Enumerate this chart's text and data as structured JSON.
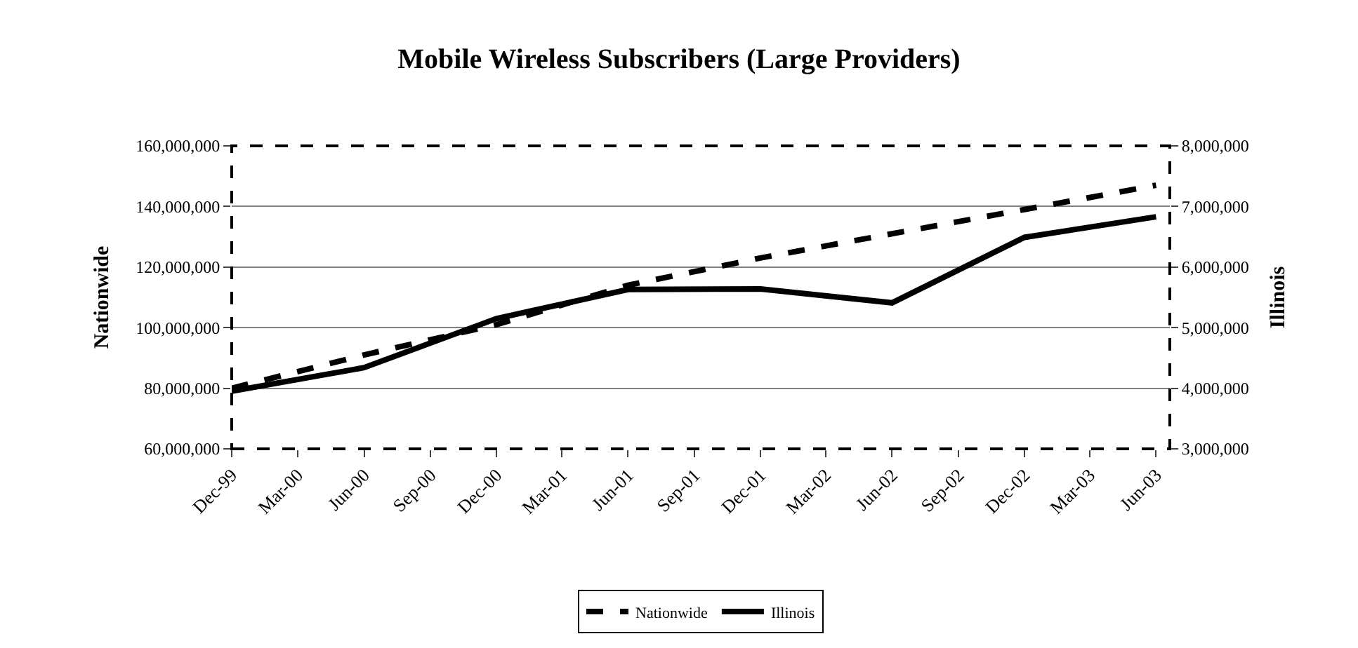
{
  "chart_data": {
    "type": "line",
    "title": "Mobile Wireless Subscribers (Large Providers)",
    "ylabel": "Nationwide",
    "y2label": "Illinois",
    "x": [
      "1999-12",
      "2000-06",
      "2000-12",
      "2001-06",
      "2001-12",
      "2002-06",
      "2002-12",
      "2003-06"
    ],
    "series": [
      {
        "name": "Nationwide",
        "color": "#000000",
        "line_style": "dashed",
        "values": [
          80000000,
          91000000,
          101000000,
          114000000,
          123000000,
          131000000,
          139000000,
          147000000
        ]
      },
      {
        "name": "Illinois",
        "color": "#000000",
        "line_style": "solid",
        "axis": "y2",
        "values": [
          3950000,
          4340000,
          5150000,
          5630000,
          5640000,
          5410000,
          6490000,
          6830000
        ]
      }
    ],
    "xlim": [
      "1999-12-01",
      "2003-06-20"
    ],
    "xticks": [
      {
        "value": "1999-12",
        "label": "Dec-99"
      },
      {
        "value": "2000-03",
        "label": "Mar-00"
      },
      {
        "value": "2000-06",
        "label": "Jun-00"
      },
      {
        "value": "2000-09",
        "label": "Sep-00"
      },
      {
        "value": "2000-12",
        "label": "Dec-00"
      },
      {
        "value": "2001-03",
        "label": "Mar-01"
      },
      {
        "value": "2001-06",
        "label": "Jun-01"
      },
      {
        "value": "2001-09",
        "label": "Sep-01"
      },
      {
        "value": "2001-12",
        "label": "Dec-01"
      },
      {
        "value": "2002-03",
        "label": "Mar-02"
      },
      {
        "value": "2002-06",
        "label": "Jun-02"
      },
      {
        "value": "2002-09",
        "label": "Sep-02"
      },
      {
        "value": "2002-12",
        "label": "Dec-02"
      },
      {
        "value": "2003-03",
        "label": "Mar-03"
      },
      {
        "value": "2003-06",
        "label": "Jun-03"
      }
    ],
    "ylim": [
      60000000,
      160000000
    ],
    "yticks": [
      {
        "value": 60000000,
        "label": "60,000,000"
      },
      {
        "value": 80000000,
        "label": "80,000,000"
      },
      {
        "value": 100000000,
        "label": "100,000,000"
      },
      {
        "value": 120000000,
        "label": "120,000,000"
      },
      {
        "value": 140000000,
        "label": "140,000,000"
      },
      {
        "value": 160000000,
        "label": "160,000,000"
      }
    ],
    "y2lim": [
      3000000,
      8000000
    ],
    "y2ticks": [
      {
        "value": 3000000,
        "label": "3,000,000"
      },
      {
        "value": 4000000,
        "label": "4,000,000"
      },
      {
        "value": 5000000,
        "label": "5,000,000"
      },
      {
        "value": 6000000,
        "label": "6,000,000"
      },
      {
        "value": 7000000,
        "label": "7,000,000"
      },
      {
        "value": 8000000,
        "label": "8,000,000"
      }
    ],
    "grid": "y",
    "legend": "bottom"
  }
}
